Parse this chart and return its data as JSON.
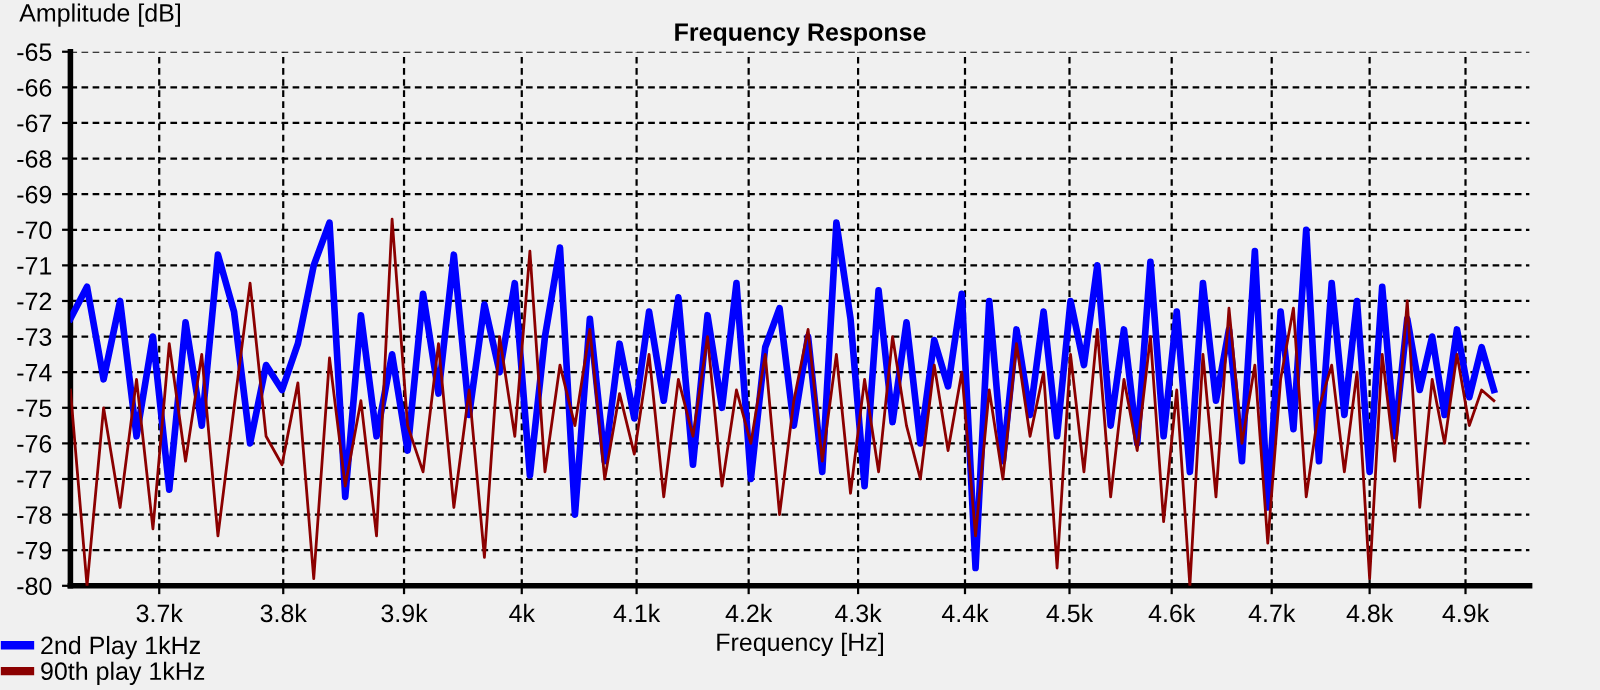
{
  "chart_data": {
    "type": "line",
    "title": "Frequency Response",
    "xlabel": "Frequency [Hz]",
    "ylabel": "Amplitude [dB]",
    "log": "x",
    "grid": true,
    "legend": "bottom left",
    "line_style": "solid",
    "marker": "none",
    "xlim": [
      3630,
      4968
    ],
    "ylim": [
      -80,
      -65
    ],
    "xticks": [
      {
        "value": 3700,
        "label": "3.7k"
      },
      {
        "value": 3800,
        "label": "3.8k"
      },
      {
        "value": 3900,
        "label": "3.9k"
      },
      {
        "value": 4000,
        "label": "4k"
      },
      {
        "value": 4100,
        "label": "4.1k"
      },
      {
        "value": 4200,
        "label": "4.2k"
      },
      {
        "value": 4300,
        "label": "4.3k"
      },
      {
        "value": 4400,
        "label": "4.4k"
      },
      {
        "value": 4500,
        "label": "4.5k"
      },
      {
        "value": 4600,
        "label": "4.6k"
      },
      {
        "value": 4700,
        "label": "4.7k"
      },
      {
        "value": 4800,
        "label": "4.8k"
      },
      {
        "value": 4900,
        "label": "4.9k"
      }
    ],
    "yticks": [
      -65,
      -66,
      -67,
      -68,
      -69,
      -70,
      -71,
      -72,
      -73,
      -74,
      -75,
      -76,
      -77,
      -78,
      -79,
      -80
    ],
    "x": [
      3630,
      3643,
      3656,
      3669,
      3682,
      3695,
      3708,
      3721,
      3734,
      3747,
      3760,
      3773,
      3786,
      3799,
      3812,
      3825,
      3838,
      3851,
      3864,
      3877,
      3890,
      3903,
      3916,
      3929,
      3942,
      3955,
      3968,
      3981,
      3994,
      4007,
      4020,
      4033,
      4046,
      4059,
      4072,
      4085,
      4098,
      4111,
      4124,
      4137,
      4150,
      4163,
      4176,
      4189,
      4202,
      4215,
      4228,
      4241,
      4254,
      4267,
      4280,
      4293,
      4306,
      4319,
      4332,
      4345,
      4358,
      4371,
      4384,
      4397,
      4410,
      4423,
      4436,
      4449,
      4462,
      4475,
      4488,
      4501,
      4514,
      4527,
      4540,
      4553,
      4566,
      4579,
      4592,
      4605,
      4618,
      4631,
      4644,
      4657,
      4670,
      4683,
      4696,
      4709,
      4722,
      4735,
      4748,
      4761,
      4774,
      4787,
      4800,
      4813,
      4826,
      4839,
      4852,
      4865,
      4878,
      4891,
      4904,
      4917,
      4930
    ],
    "series": [
      {
        "name": "90th play 1kHz",
        "color": "#8b0000",
        "values": [
          -74.5,
          -80.0,
          -75.0,
          -77.8,
          -74.2,
          -78.4,
          -73.2,
          -76.5,
          -73.5,
          -78.6,
          -75.0,
          -71.5,
          -75.8,
          -76.6,
          -74.3,
          -79.8,
          -73.6,
          -77.2,
          -74.8,
          -78.6,
          -69.7,
          -75.5,
          -76.8,
          -73.2,
          -77.8,
          -74.5,
          -79.2,
          -73.0,
          -75.8,
          -70.6,
          -76.8,
          -73.8,
          -75.5,
          -72.8,
          -77.0,
          -74.6,
          -76.3,
          -73.5,
          -77.5,
          -74.2,
          -75.8,
          -73.0,
          -77.2,
          -74.5,
          -76.0,
          -73.5,
          -78.0,
          -74.8,
          -72.8,
          -76.5,
          -73.5,
          -77.4,
          -74.2,
          -76.8,
          -73.0,
          -75.5,
          -77.0,
          -73.8,
          -76.2,
          -74.0,
          -78.6,
          -74.5,
          -77.0,
          -73.2,
          -75.8,
          -74.0,
          -79.5,
          -73.5,
          -76.8,
          -72.8,
          -77.5,
          -74.2,
          -76.2,
          -73.0,
          -78.2,
          -74.5,
          -80.0,
          -73.5,
          -77.5,
          -72.2,
          -76.0,
          -73.8,
          -78.8,
          -74.2,
          -72.2,
          -77.5,
          -75.0,
          -73.8,
          -76.8,
          -74.0,
          -79.8,
          -73.5,
          -76.5,
          -72.0,
          -77.8,
          -74.2,
          -76.0,
          -73.5,
          -75.5,
          -74.5,
          -74.8
        ]
      },
      {
        "name": "2nd Play 1kHz",
        "color": "#0000ff",
        "values": [
          -72.5,
          -71.6,
          -74.2,
          -72.0,
          -75.8,
          -73.0,
          -77.3,
          -72.6,
          -75.5,
          -70.7,
          -72.3,
          -76.0,
          -73.8,
          -74.5,
          -73.2,
          -71.0,
          -69.8,
          -77.5,
          -72.4,
          -75.8,
          -73.5,
          -76.2,
          -71.8,
          -74.6,
          -70.7,
          -75.2,
          -72.1,
          -74.0,
          -71.5,
          -76.9,
          -73.0,
          -70.5,
          -78.0,
          -72.5,
          -76.5,
          -73.2,
          -75.3,
          -72.3,
          -74.8,
          -71.9,
          -76.6,
          -72.4,
          -75.0,
          -71.5,
          -77.0,
          -73.3,
          -72.2,
          -75.5,
          -73.0,
          -76.8,
          -69.8,
          -72.5,
          -77.2,
          -71.7,
          -75.4,
          -72.6,
          -76.0,
          -73.1,
          -74.4,
          -71.8,
          -79.5,
          -72.0,
          -76.5,
          -72.8,
          -75.2,
          -72.3,
          -75.8,
          -72.0,
          -73.8,
          -71.0,
          -75.5,
          -72.8,
          -76.0,
          -70.9,
          -75.8,
          -72.3,
          -76.8,
          -71.5,
          -74.8,
          -72.8,
          -76.5,
          -70.6,
          -77.8,
          -72.3,
          -75.6,
          -70.0,
          -76.5,
          -71.5,
          -75.2,
          -72.0,
          -76.8,
          -71.6,
          -75.8,
          -72.5,
          -74.5,
          -73.0,
          -75.2,
          -72.8,
          -74.7,
          -73.3,
          -74.5
        ]
      }
    ]
  }
}
